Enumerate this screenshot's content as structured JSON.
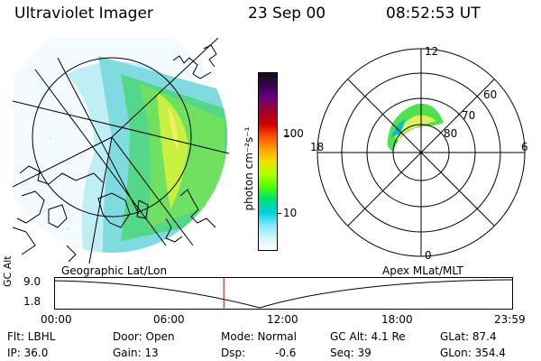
{
  "header": {
    "instrument": "Ultraviolet Imager",
    "date": "23 Sep 00",
    "time": "08:52:53 UT"
  },
  "colorbar": {
    "unit_label": "photon cm⁻²s⁻¹",
    "ticks": [
      "100",
      "10"
    ],
    "colors": [
      "#101010",
      "#3a0050",
      "#6a0080",
      "#a00030",
      "#d00000",
      "#ff5000",
      "#ffa000",
      "#f0e000",
      "#b0ff00",
      "#50ff00",
      "#00e070",
      "#00d0e0",
      "#80e8ff",
      "#d0f4ff",
      "#ffffff"
    ]
  },
  "left_map": {
    "label": "Geographic Lat/Lon"
  },
  "polar_plot": {
    "label": "Apex MLat/MLT",
    "mlt_labels": {
      "top": "12",
      "left": "18",
      "right": "6",
      "bottom": "0"
    },
    "lat_labels": [
      "60",
      "70",
      "80"
    ]
  },
  "timeline": {
    "ylabel": "GC Alt",
    "yticks": [
      "9.0",
      "1.8"
    ],
    "xticks": [
      "00:00",
      "06:00",
      "12:00",
      "18:00",
      "23:59"
    ],
    "current_time_fraction": 0.37,
    "marker_color": "#cc0000"
  },
  "info": {
    "flt": "Flt: LBHL",
    "ip": "IP: 36.0",
    "door": "Door: Open",
    "gain": "Gain: 13",
    "mode": "Mode: Normal",
    "dsp_label": "Dsp:",
    "dsp_value": "-0.6",
    "gcalt": "GC Alt: 4.1 Re",
    "seq": "Seq: 39",
    "glat": "GLat: 87.4",
    "glon": "GLon: 354.4"
  }
}
